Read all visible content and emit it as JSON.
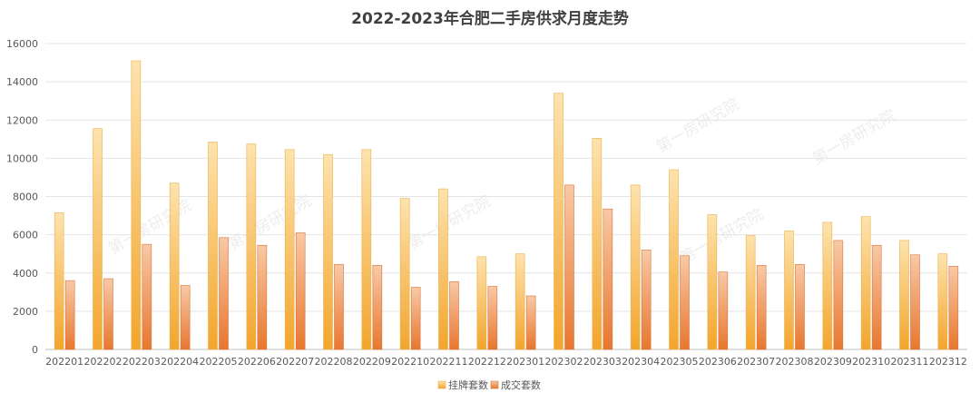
{
  "chart_data": {
    "type": "bar",
    "title": "2022-2023年合肥二手房供求月度走势",
    "xlabel": "",
    "ylabel": "",
    "ylim": [
      0,
      16000
    ],
    "yticks": [
      "0",
      "2000",
      "4000",
      "6000",
      "8000",
      "10000",
      "12000",
      "14000",
      "16000"
    ],
    "grid": true,
    "legend_position": "bottom",
    "categories": [
      "202201",
      "202202",
      "202203",
      "202204",
      "202205",
      "202206",
      "202207",
      "202208",
      "202209",
      "202210",
      "202211",
      "202212",
      "202301",
      "202302",
      "202303",
      "202304",
      "202305",
      "202306",
      "202307",
      "202308",
      "202309",
      "202310",
      "202311",
      "202312"
    ],
    "series": [
      {
        "name": "挂牌套数",
        "color": "#F8C66A",
        "values": [
          7150,
          11550,
          15100,
          8700,
          10850,
          10750,
          10450,
          10200,
          10450,
          7900,
          8400,
          4850,
          5000,
          13400,
          11050,
          8600,
          9400,
          7050,
          5950,
          6200,
          6650,
          6950,
          5700,
          5000
        ]
      },
      {
        "name": "成交套数",
        "color": "#EE8A4C",
        "values": [
          3600,
          3700,
          5500,
          3350,
          5850,
          5450,
          6100,
          4450,
          4400,
          3250,
          3550,
          3300,
          2800,
          8600,
          7350,
          5200,
          4900,
          4050,
          4400,
          4450,
          5700,
          5450,
          4950,
          4350
        ]
      }
    ]
  },
  "watermark": "第一房研究院"
}
